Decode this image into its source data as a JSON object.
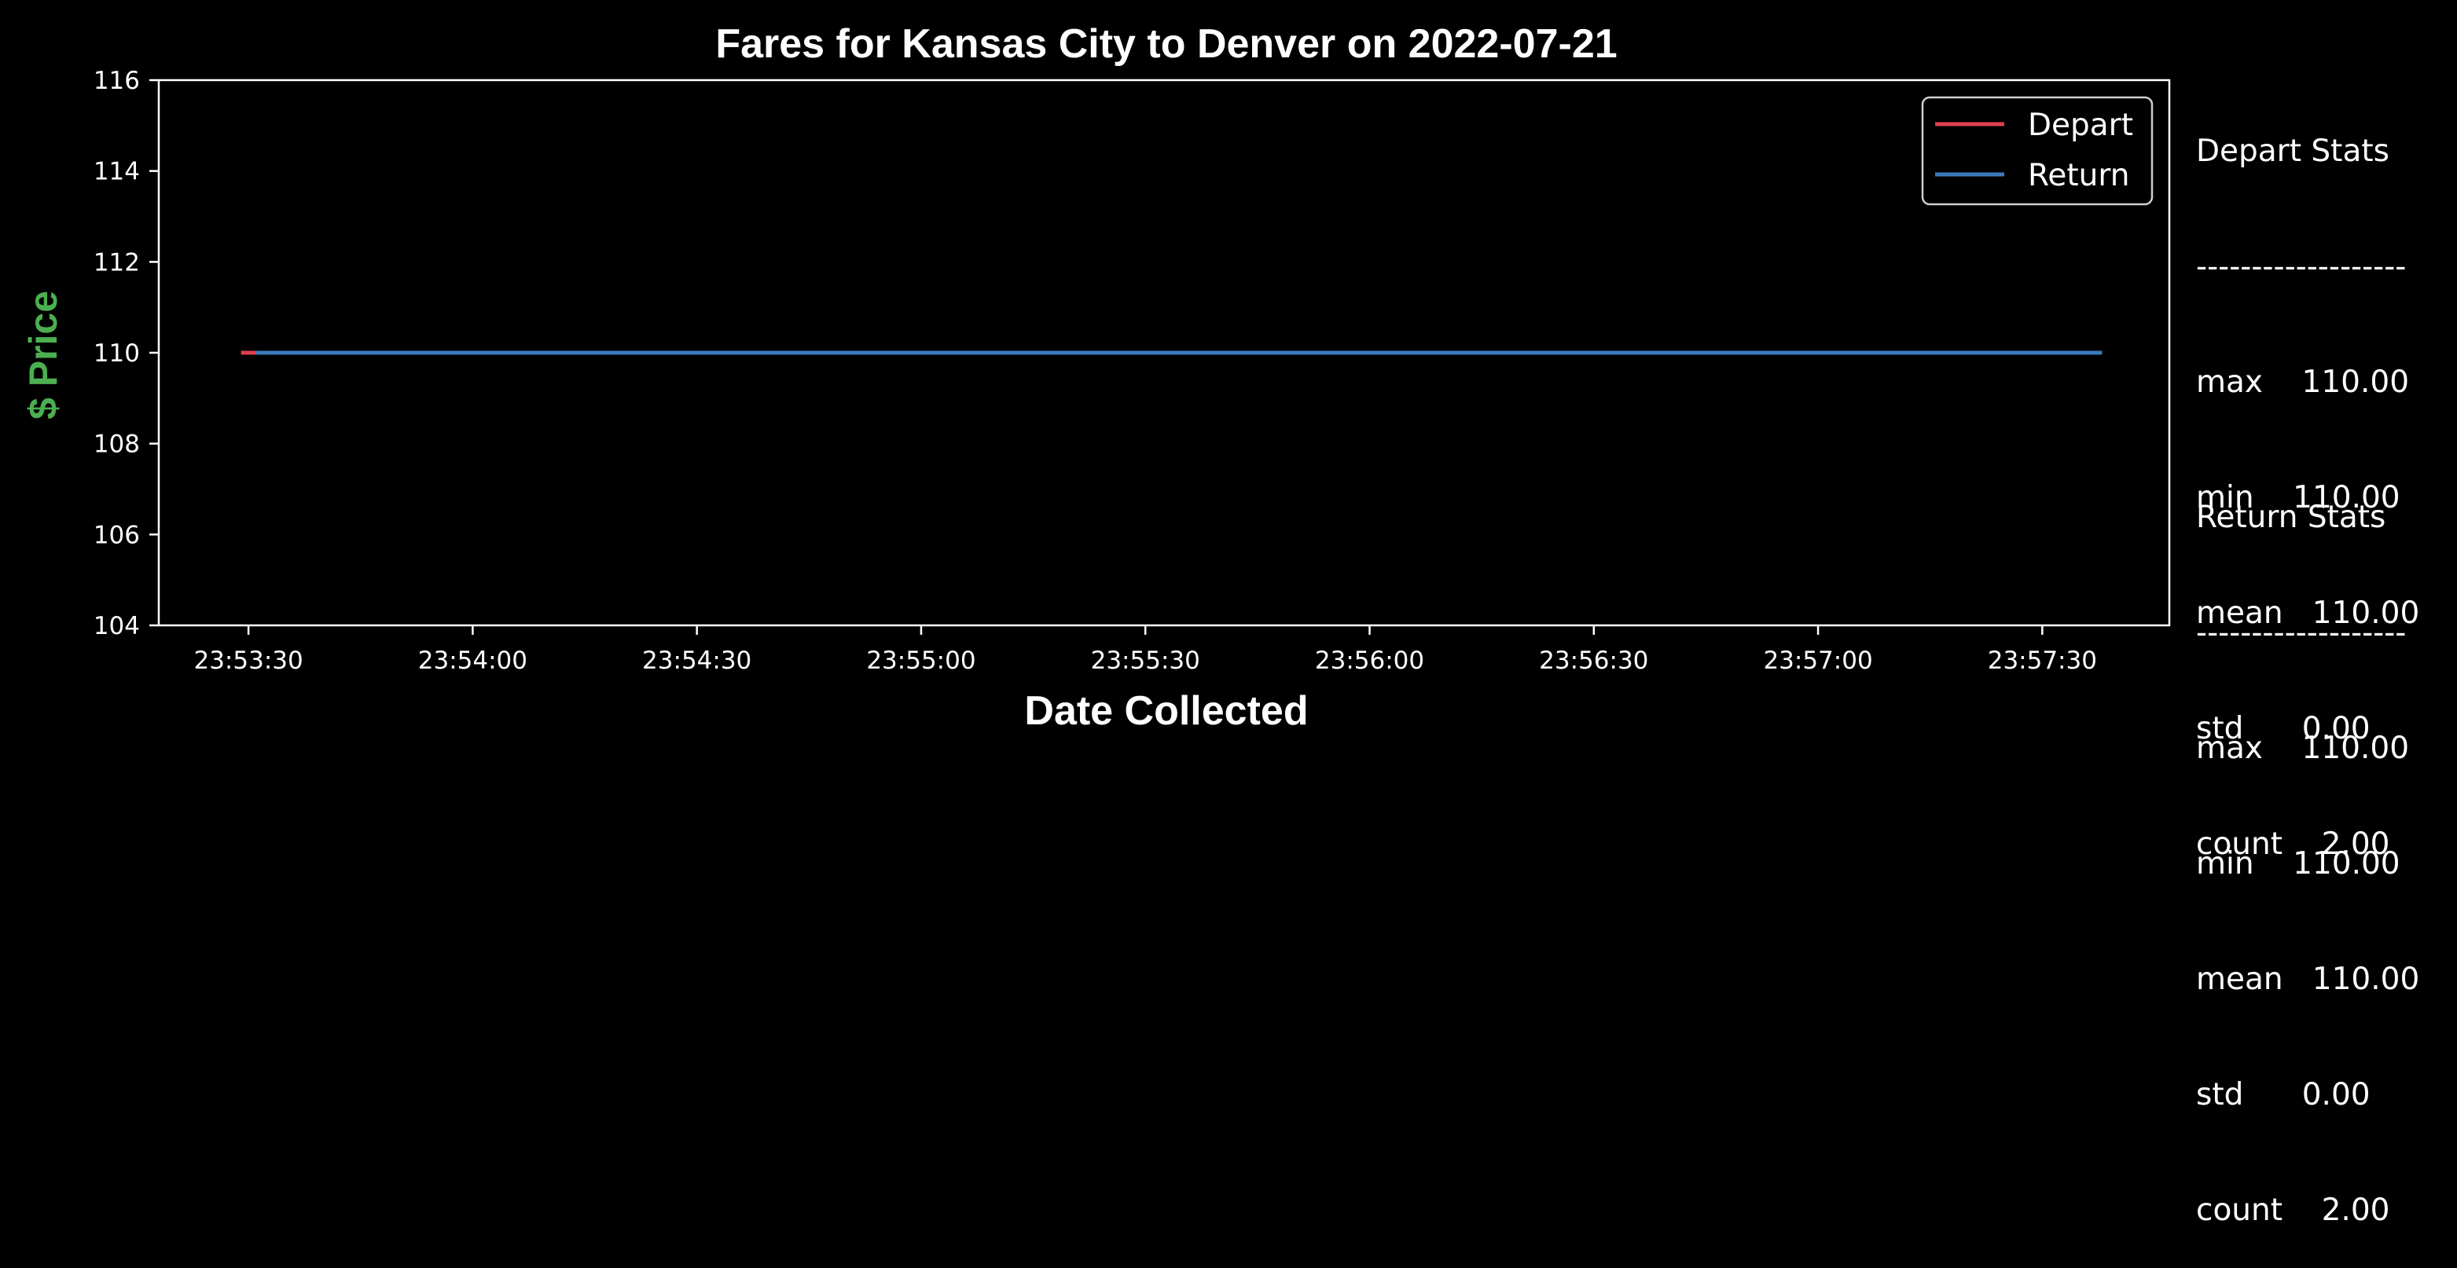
{
  "chart_data": {
    "type": "line",
    "title": "Fares for Kansas City to Denver on 2022-07-21",
    "xlabel": "Date Collected",
    "ylabel": "$ Price",
    "x_ticks": [
      "23:53:30",
      "23:54:00",
      "23:54:30",
      "23:55:00",
      "23:55:30",
      "23:56:00",
      "23:56:30",
      "23:57:00",
      "23:57:30"
    ],
    "y_ticks": [
      104,
      106,
      108,
      110,
      112,
      114,
      116
    ],
    "xlim": [
      "23:53:18",
      "23:57:47"
    ],
    "ylim": [
      104,
      116
    ],
    "grid": false,
    "legend_position": "top-right",
    "series": [
      {
        "name": "Depart",
        "color": "#e0404e",
        "points": [
          {
            "x": "23:53:29",
            "y": 110
          },
          {
            "x": "23:53:31",
            "y": 110
          }
        ]
      },
      {
        "name": "Return",
        "color": "#3a7bbd",
        "points": [
          {
            "x": "23:53:31",
            "y": 110
          },
          {
            "x": "23:57:38",
            "y": 110
          }
        ]
      }
    ]
  },
  "stats": {
    "depart": {
      "title": "Depart Stats",
      "rule": "-------------------",
      "rows": [
        "max    110.00",
        "min    110.00",
        "mean   110.00",
        "std      0.00",
        "count    2.00"
      ]
    },
    "return": {
      "title": "Return Stats",
      "rule": "-------------------",
      "rows": [
        "max    110.00",
        "min    110.00",
        "mean   110.00",
        "std      0.00",
        "count    2.00"
      ]
    }
  }
}
